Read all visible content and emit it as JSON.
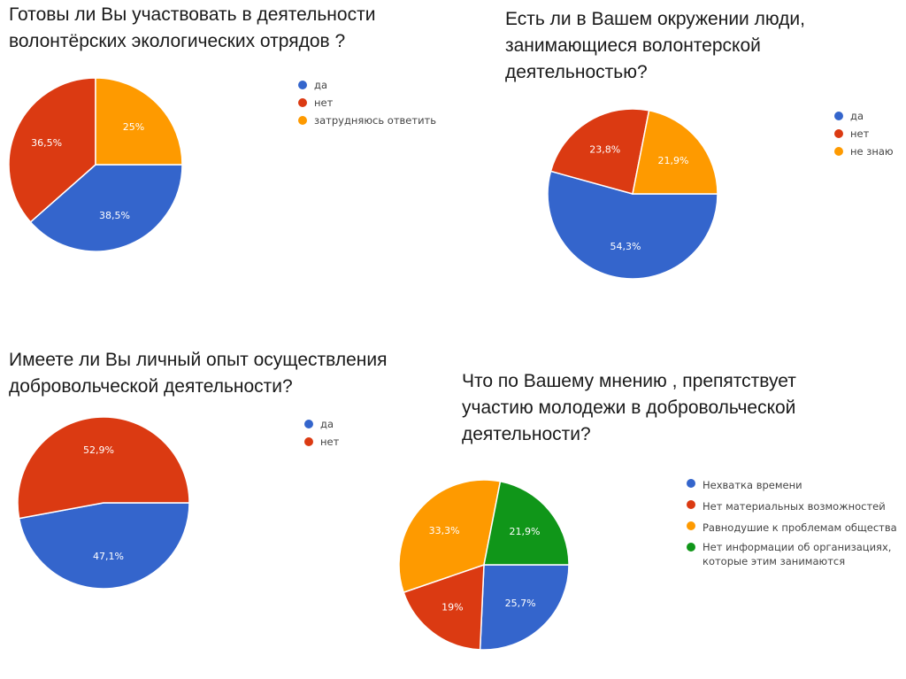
{
  "colors": {
    "blue": "#3465cc",
    "red": "#db3a12",
    "orange": "#fe9a00",
    "green": "#109619"
  },
  "chart_data": [
    {
      "type": "pie",
      "title": "Готовы ли Вы участвовать в деятельности волонтёрских экологических отрядов ?",
      "categories": [
        "да",
        "нет",
        "затрудняюсь ответить"
      ],
      "values": [
        38.5,
        36.5,
        25
      ],
      "labels": [
        "38,5%",
        "36,5%",
        "25%"
      ],
      "colors": [
        "#3465cc",
        "#db3a12",
        "#fe9a00"
      ],
      "legend": "right"
    },
    {
      "type": "pie",
      "title": "Есть ли в Вашем окружении люди, занимающиеся волонтерской деятельностью?",
      "categories": [
        "да",
        "нет",
        "не знаю"
      ],
      "values": [
        54.3,
        23.8,
        21.9
      ],
      "labels": [
        "54,3%",
        "23,8%",
        "21,9%"
      ],
      "colors": [
        "#3465cc",
        "#db3a12",
        "#fe9a00"
      ],
      "legend": "right"
    },
    {
      "type": "pie",
      "title": "Имеете ли Вы личный опыт осуществления добровольческой деятельности?",
      "categories": [
        "да",
        "нет"
      ],
      "values": [
        47.1,
        52.9
      ],
      "labels": [
        "47,1%",
        "52,9%"
      ],
      "colors": [
        "#3465cc",
        "#db3a12"
      ],
      "legend": "right"
    },
    {
      "type": "pie",
      "title": "Что по Вашему мнению , препятствует участию молодежи в добровольческой деятельности?",
      "categories": [
        "Нехватка времени",
        "Нет материальных возможностей",
        "Равнодушие к проблемам общества",
        "Нет информации об организациях, которые этим занимаются"
      ],
      "values": [
        25.7,
        19,
        33.3,
        21.9
      ],
      "labels": [
        "25,7%",
        "19%",
        "33,3%",
        "21,9%"
      ],
      "colors": [
        "#3465cc",
        "#db3a12",
        "#fe9a00",
        "#109619"
      ],
      "legend": "right"
    }
  ]
}
